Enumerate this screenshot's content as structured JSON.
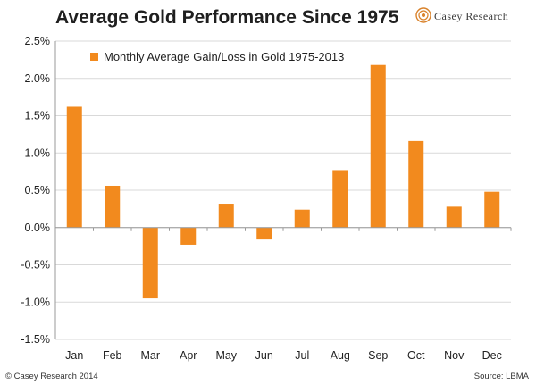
{
  "header": {
    "title": "Average Gold Performance Since 1975",
    "brand": "Casey Research"
  },
  "footer": {
    "copyright": "© Casey Research 2014",
    "source": "Source: LBMA"
  },
  "colors": {
    "bar": "#F28A1E",
    "grid": "#d9d9d9",
    "axis": "#9a9a9a"
  },
  "chart_data": {
    "type": "bar",
    "title": "Average Gold Performance Since 1975",
    "xlabel": "",
    "ylabel": "",
    "categories": [
      "Jan",
      "Feb",
      "Mar",
      "Apr",
      "May",
      "Jun",
      "Jul",
      "Aug",
      "Sep",
      "Oct",
      "Nov",
      "Dec"
    ],
    "series": [
      {
        "name": "Monthly Average Gain/Loss in Gold 1975-2013",
        "values": [
          1.62,
          0.56,
          -0.95,
          -0.23,
          0.32,
          -0.16,
          0.24,
          0.77,
          2.18,
          1.16,
          0.28,
          0.48
        ]
      }
    ],
    "ylim": [
      -1.5,
      2.5
    ],
    "yticks": [
      -1.5,
      -1.0,
      -0.5,
      0.0,
      0.5,
      1.0,
      1.5,
      2.0,
      2.5
    ],
    "ytick_labels": [
      "-1.5%",
      "-1.0%",
      "-0.5%",
      "0.0%",
      "0.5%",
      "1.0%",
      "1.5%",
      "2.0%",
      "2.5%"
    ],
    "grid": true,
    "legend_position": "top-left"
  }
}
